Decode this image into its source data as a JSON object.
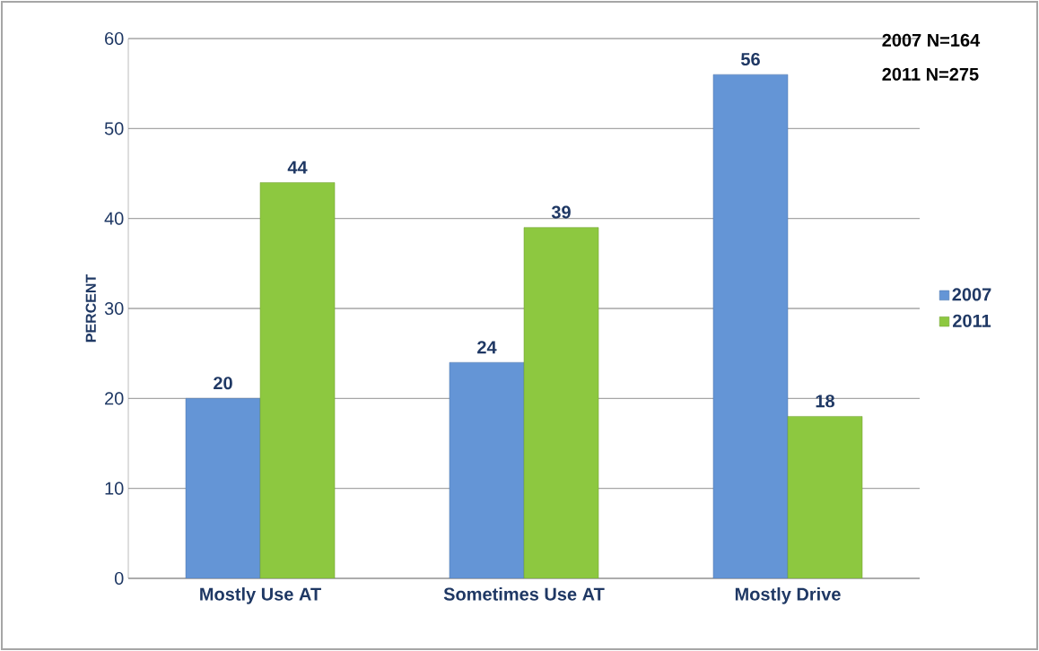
{
  "chart_data": {
    "type": "bar",
    "ylabel": "PERCENT",
    "categories": [
      "Mostly Use AT",
      "Sometimes Use AT",
      "Mostly Drive"
    ],
    "series": [
      {
        "name": "2007",
        "color": "#6495d6",
        "values": [
          20,
          24,
          56
        ]
      },
      {
        "name": "2011",
        "color": "#8dc840",
        "values": [
          44,
          39,
          18
        ]
      }
    ],
    "ylim": [
      0,
      60
    ],
    "yticks": [
      0,
      10,
      20,
      30,
      40,
      50,
      60
    ],
    "grid": "y",
    "legend": "right",
    "data_labels": true,
    "annotations": [
      "2007 N=164",
      "2011 N=275"
    ]
  }
}
